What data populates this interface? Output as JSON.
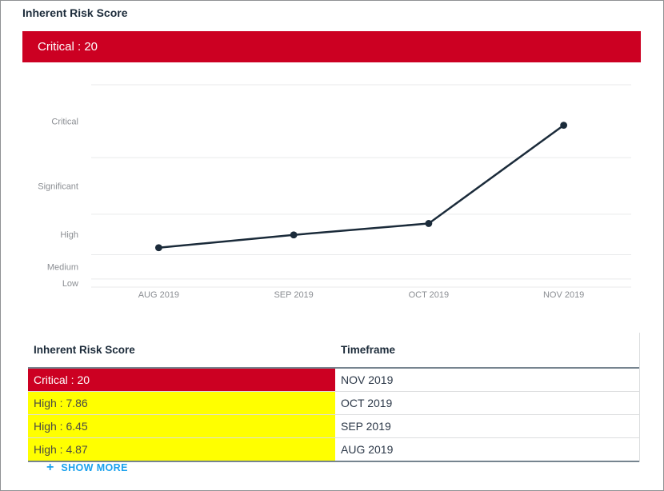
{
  "page": {
    "title": "Inherent Risk Score"
  },
  "banner": {
    "label": "Critical : 20"
  },
  "colors": {
    "critical_red": "#CC0022",
    "high_yellow": "#FFFF00",
    "accent_blue": "#1AA1ED",
    "line_navy": "#1B2B3A",
    "gridline": "#E9EAEB"
  },
  "severity_colors": {
    "critical": {
      "bg": "#CC0022",
      "text": "#FFFFFF"
    },
    "high": {
      "bg": "#FFFF00",
      "text": "#4A4A44"
    }
  },
  "chart_data": {
    "type": "line",
    "title": "Inherent Risk Score trend",
    "categories": [
      "AUG 2019",
      "SEP 2019",
      "OCT 2019",
      "NOV 2019"
    ],
    "series": [
      {
        "name": "Inherent Risk Score",
        "values": [
          4.87,
          6.45,
          7.86,
          20
        ]
      }
    ],
    "ylim": [
      0,
      25
    ],
    "gridline_values": [
      0,
      1,
      4,
      9,
      16,
      25
    ],
    "y_band_labels": [
      {
        "label": "Low",
        "center_value": 0.5
      },
      {
        "label": "Medium",
        "center_value": 2.5
      },
      {
        "label": "High",
        "center_value": 6.5
      },
      {
        "label": "Significant",
        "center_value": 12.5
      },
      {
        "label": "Critical",
        "center_value": 20.5
      }
    ],
    "grid": true,
    "legend": "none",
    "xlabel": "",
    "ylabel": ""
  },
  "table": {
    "headers": [
      "Inherent Risk Score",
      "Timeframe"
    ],
    "rows": [
      {
        "score": "Critical : 20",
        "severity": "critical",
        "timeframe": "NOV 2019"
      },
      {
        "score": "High : 7.86",
        "severity": "high",
        "timeframe": "OCT 2019"
      },
      {
        "score": "High : 6.45",
        "severity": "high",
        "timeframe": "SEP 2019"
      },
      {
        "score": "High : 4.87",
        "severity": "high",
        "timeframe": "AUG 2019"
      }
    ],
    "show_more_label": "SHOW MORE",
    "show_more_icon": "+"
  }
}
